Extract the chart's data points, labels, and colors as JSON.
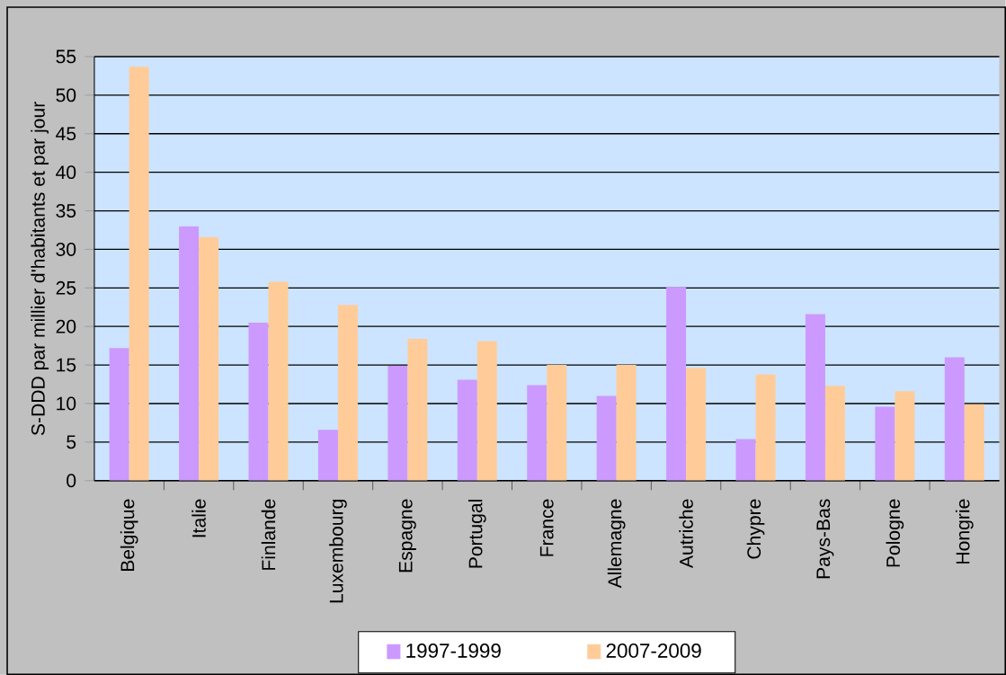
{
  "chart_data": {
    "type": "bar",
    "ylabel": "S-DDD par millier d'habitants et par jour",
    "categories": [
      "Belgique",
      "Italie",
      "Finlande",
      "Luxembourg",
      "Espagne",
      "Portugal",
      "France",
      "Allemagne",
      "Autriche",
      "Chypre",
      "Pays-Bas",
      "Pologne",
      "Hongrie"
    ],
    "series": [
      {
        "name": "1997-1999",
        "color": "#cc99ff",
        "values": [
          17.2,
          33.0,
          20.5,
          6.6,
          14.9,
          13.1,
          12.4,
          11.0,
          25.1,
          5.4,
          21.6,
          9.6,
          16.0
        ]
      },
      {
        "name": "2007-2009",
        "color": "#ffcc99",
        "values": [
          53.7,
          31.6,
          25.8,
          22.8,
          18.4,
          18.1,
          15.0,
          15.0,
          14.6,
          13.8,
          12.3,
          11.6,
          9.9
        ]
      }
    ],
    "ylim": [
      0,
      55
    ],
    "yticks": [
      0,
      5,
      10,
      15,
      20,
      25,
      30,
      35,
      40,
      45,
      50,
      55
    ],
    "grid": "y",
    "legend": "bottom"
  }
}
